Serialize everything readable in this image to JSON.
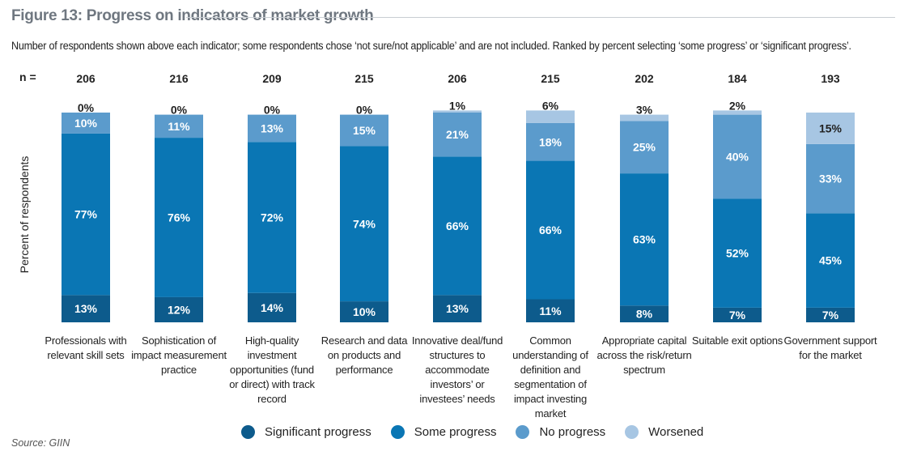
{
  "chart_data": {
    "type": "bar",
    "stacked": true,
    "title": "Figure 13: Progress on indicators of market growth",
    "subtitle": "Number of respondents shown above each indicator; some respondents chose ‘not sure/not applicable’ and are not included. Ranked by percent selecting ‘some progress’ or ‘significant progress’.",
    "n_label": "n =",
    "ylabel": "Percent of respondents",
    "ylim": [
      0,
      100
    ],
    "categories": [
      "Professionals with relevant skill sets",
      "Sophistication of impact measurement practice",
      "High-quality investment opportunities (fund or direct) with track record",
      "Research and data on products and performance",
      "Innovative deal/fund structures to accommodate investors’ or investees’ needs",
      "Common understanding of definition and segmentation of impact investing market",
      "Appropriate capital across the risk/return spectrum",
      "Suitable exit options",
      "Government support for the market"
    ],
    "n_values": [
      "206",
      "216",
      "209",
      "215",
      "206",
      "215",
      "202",
      "184",
      "193"
    ],
    "series": [
      {
        "name": "Significant progress",
        "color": "#0d5b8c",
        "text_color": "#ffffff",
        "values": [
          13,
          12,
          14,
          10,
          13,
          11,
          8,
          7,
          7
        ]
      },
      {
        "name": "Some progress",
        "color": "#0a76b4",
        "text_color": "#ffffff",
        "values": [
          77,
          76,
          72,
          74,
          66,
          66,
          63,
          52,
          45
        ]
      },
      {
        "name": "No progress",
        "color": "#5b9bcc",
        "text_color": "#ffffff",
        "values": [
          10,
          11,
          13,
          15,
          21,
          18,
          25,
          40,
          33
        ]
      },
      {
        "name": "Worsened",
        "color": "#a7c6e3",
        "text_color": "#222222",
        "values": [
          0,
          0,
          0,
          0,
          1,
          6,
          3,
          2,
          15
        ]
      }
    ],
    "legend_position": "bottom"
  },
  "source": "Source: GIIN"
}
